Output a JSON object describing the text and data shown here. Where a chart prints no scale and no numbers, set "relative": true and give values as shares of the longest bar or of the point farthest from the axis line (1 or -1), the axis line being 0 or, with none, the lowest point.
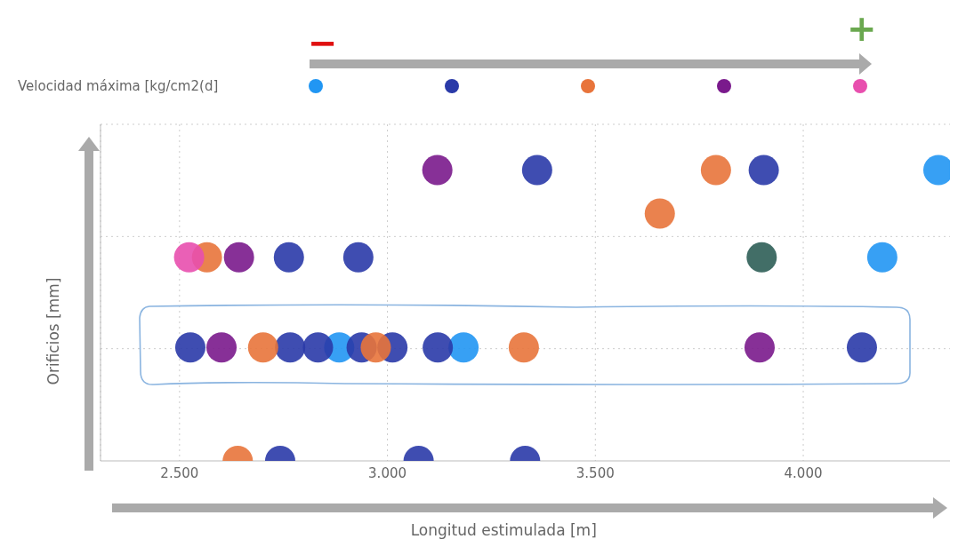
{
  "chart_data": {
    "type": "scatter",
    "xlabel": "Longitud estimulada [m]",
    "ylabel": "Orificios [mm]",
    "legend_title": "Velocidad máxima [kg/cm2(d]",
    "relative": true,
    "grid": true,
    "marker": "circle",
    "xlim": [
      2310,
      4355
    ],
    "xticks": [
      {
        "value": 2500,
        "label": "2.500"
      },
      {
        "value": 3000,
        "label": "3.000"
      },
      {
        "value": 3500,
        "label": "3.500"
      },
      {
        "value": 4000,
        "label": "4.000"
      }
    ],
    "annotations": [
      "−",
      "+"
    ],
    "series": [
      {
        "color": "#2196f3",
        "x": [
          4325,
          4190,
          2884,
          3183
        ],
        "values": [
          1,
          0.7,
          0.39,
          0.39
        ]
      },
      {
        "color": "#2a3aa8",
        "x": [
          3360,
          3905,
          2763,
          2930,
          2526,
          2766,
          2833,
          2938,
          3012,
          3121,
          4141,
          2742,
          3075,
          3331
        ],
        "values": [
          1,
          1,
          0.7,
          0.7,
          0.39,
          0.39,
          0.39,
          0.39,
          0.39,
          0.39,
          0.39,
          0,
          0,
          0
        ]
      },
      {
        "color": "#e8743b",
        "x": [
          3790,
          3655,
          2566,
          2701,
          2972,
          3328,
          2640
        ],
        "values": [
          1,
          0.85,
          0.7,
          0.39,
          0.39,
          0.39,
          0
        ]
      },
      {
        "color": "#7a1a8c",
        "x": [
          3120,
          2643,
          2601,
          3895
        ],
        "values": [
          1,
          0.7,
          0.39,
          0.39
        ]
      },
      {
        "color": "#e84fae",
        "x": [
          2523
        ],
        "values": [
          0.7
        ]
      },
      {
        "color": "#2d5e56",
        "x": [
          3900
        ],
        "values": [
          0.7
        ]
      }
    ]
  }
}
